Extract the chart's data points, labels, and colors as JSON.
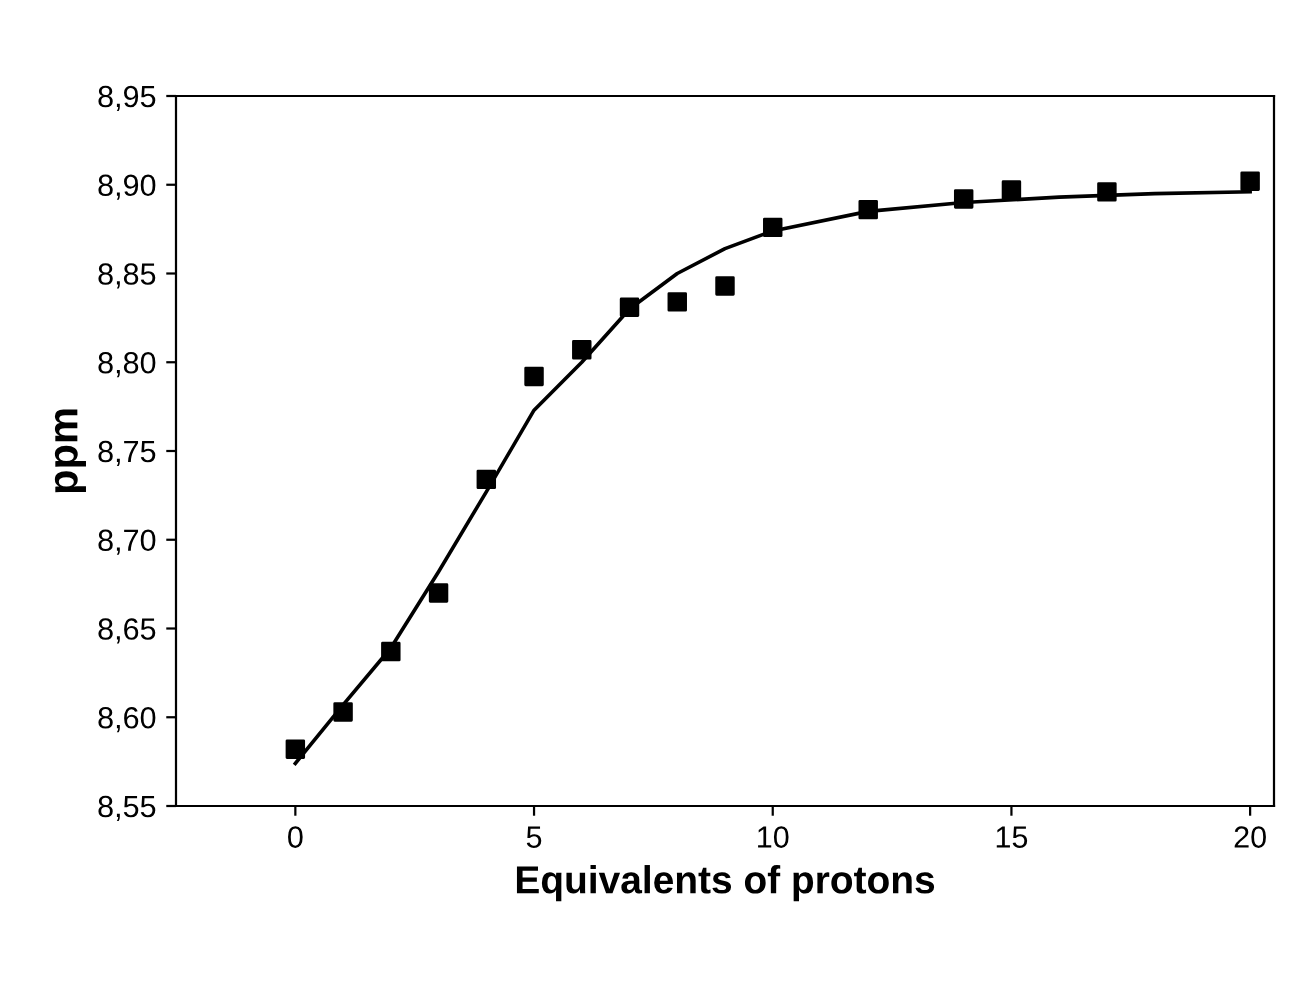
{
  "chart_data": {
    "type": "scatter",
    "xlabel": "Equivalents of protons",
    "ylabel": "ppm",
    "xlim": [
      -2.5,
      20.5
    ],
    "xticks": [
      0,
      5,
      10,
      15,
      20
    ],
    "ylim": [
      8.55,
      8.95
    ],
    "yticks": [
      {
        "value": 8.55,
        "label": "8,55"
      },
      {
        "value": 8.6,
        "label": "8,60"
      },
      {
        "value": 8.65,
        "label": "8,65"
      },
      {
        "value": 8.7,
        "label": "8,70"
      },
      {
        "value": 8.75,
        "label": "8,75"
      },
      {
        "value": 8.8,
        "label": "8,80"
      },
      {
        "value": 8.85,
        "label": "8,85"
      },
      {
        "value": 8.9,
        "label": "8,90"
      },
      {
        "value": 8.95,
        "label": "8,95"
      }
    ],
    "grid": false,
    "series": [
      {
        "marker": "square",
        "color": "#000000",
        "x": [
          0,
          1,
          2,
          3,
          4,
          5,
          6,
          7,
          8,
          9,
          10,
          12,
          14,
          15,
          17,
          20
        ],
        "values": [
          8.582,
          8.603,
          8.637,
          8.67,
          8.734,
          8.792,
          8.807,
          8.831,
          8.834,
          8.843,
          8.876,
          8.886,
          8.892,
          8.897,
          8.896,
          8.902
        ]
      },
      {
        "type": "line",
        "marker": "none",
        "line_style": "solid",
        "color": "#000000",
        "x": [
          0,
          1,
          2,
          3,
          4,
          5,
          6,
          7,
          8,
          9,
          10,
          12,
          14,
          16,
          18,
          20
        ],
        "values": [
          8.574,
          8.607,
          8.639,
          8.682,
          8.727,
          8.773,
          8.8,
          8.83,
          8.85,
          8.864,
          8.874,
          8.885,
          8.89,
          8.893,
          8.895,
          8.896
        ]
      }
    ]
  }
}
